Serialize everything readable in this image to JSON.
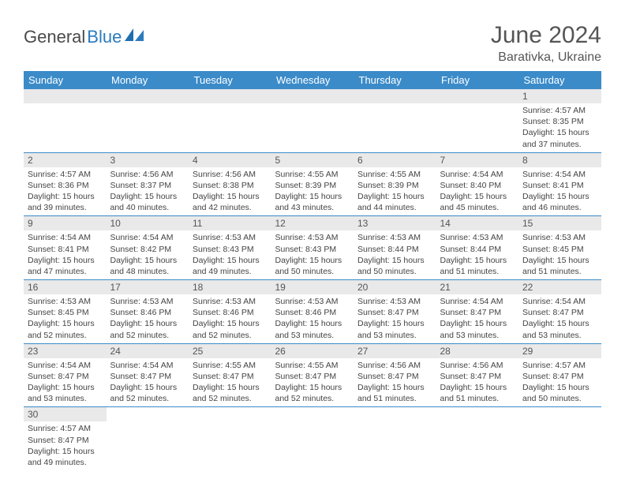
{
  "brand": {
    "part1": "General",
    "part2": "Blue"
  },
  "header": {
    "title": "June 2024",
    "location": "Barativka, Ukraine"
  },
  "colors": {
    "headerBar": "#3b8bc9",
    "dayStrip": "#e9e9e9",
    "text": "#555555",
    "brandBlue": "#2b7bbf"
  },
  "weekdays": [
    "Sunday",
    "Monday",
    "Tuesday",
    "Wednesday",
    "Thursday",
    "Friday",
    "Saturday"
  ],
  "days": {
    "1": {
      "sunrise": "Sunrise: 4:57 AM",
      "sunset": "Sunset: 8:35 PM",
      "day1": "Daylight: 15 hours",
      "day2": "and 37 minutes."
    },
    "2": {
      "sunrise": "Sunrise: 4:57 AM",
      "sunset": "Sunset: 8:36 PM",
      "day1": "Daylight: 15 hours",
      "day2": "and 39 minutes."
    },
    "3": {
      "sunrise": "Sunrise: 4:56 AM",
      "sunset": "Sunset: 8:37 PM",
      "day1": "Daylight: 15 hours",
      "day2": "and 40 minutes."
    },
    "4": {
      "sunrise": "Sunrise: 4:56 AM",
      "sunset": "Sunset: 8:38 PM",
      "day1": "Daylight: 15 hours",
      "day2": "and 42 minutes."
    },
    "5": {
      "sunrise": "Sunrise: 4:55 AM",
      "sunset": "Sunset: 8:39 PM",
      "day1": "Daylight: 15 hours",
      "day2": "and 43 minutes."
    },
    "6": {
      "sunrise": "Sunrise: 4:55 AM",
      "sunset": "Sunset: 8:39 PM",
      "day1": "Daylight: 15 hours",
      "day2": "and 44 minutes."
    },
    "7": {
      "sunrise": "Sunrise: 4:54 AM",
      "sunset": "Sunset: 8:40 PM",
      "day1": "Daylight: 15 hours",
      "day2": "and 45 minutes."
    },
    "8": {
      "sunrise": "Sunrise: 4:54 AM",
      "sunset": "Sunset: 8:41 PM",
      "day1": "Daylight: 15 hours",
      "day2": "and 46 minutes."
    },
    "9": {
      "sunrise": "Sunrise: 4:54 AM",
      "sunset": "Sunset: 8:41 PM",
      "day1": "Daylight: 15 hours",
      "day2": "and 47 minutes."
    },
    "10": {
      "sunrise": "Sunrise: 4:54 AM",
      "sunset": "Sunset: 8:42 PM",
      "day1": "Daylight: 15 hours",
      "day2": "and 48 minutes."
    },
    "11": {
      "sunrise": "Sunrise: 4:53 AM",
      "sunset": "Sunset: 8:43 PM",
      "day1": "Daylight: 15 hours",
      "day2": "and 49 minutes."
    },
    "12": {
      "sunrise": "Sunrise: 4:53 AM",
      "sunset": "Sunset: 8:43 PM",
      "day1": "Daylight: 15 hours",
      "day2": "and 50 minutes."
    },
    "13": {
      "sunrise": "Sunrise: 4:53 AM",
      "sunset": "Sunset: 8:44 PM",
      "day1": "Daylight: 15 hours",
      "day2": "and 50 minutes."
    },
    "14": {
      "sunrise": "Sunrise: 4:53 AM",
      "sunset": "Sunset: 8:44 PM",
      "day1": "Daylight: 15 hours",
      "day2": "and 51 minutes."
    },
    "15": {
      "sunrise": "Sunrise: 4:53 AM",
      "sunset": "Sunset: 8:45 PM",
      "day1": "Daylight: 15 hours",
      "day2": "and 51 minutes."
    },
    "16": {
      "sunrise": "Sunrise: 4:53 AM",
      "sunset": "Sunset: 8:45 PM",
      "day1": "Daylight: 15 hours",
      "day2": "and 52 minutes."
    },
    "17": {
      "sunrise": "Sunrise: 4:53 AM",
      "sunset": "Sunset: 8:46 PM",
      "day1": "Daylight: 15 hours",
      "day2": "and 52 minutes."
    },
    "18": {
      "sunrise": "Sunrise: 4:53 AM",
      "sunset": "Sunset: 8:46 PM",
      "day1": "Daylight: 15 hours",
      "day2": "and 52 minutes."
    },
    "19": {
      "sunrise": "Sunrise: 4:53 AM",
      "sunset": "Sunset: 8:46 PM",
      "day1": "Daylight: 15 hours",
      "day2": "and 53 minutes."
    },
    "20": {
      "sunrise": "Sunrise: 4:53 AM",
      "sunset": "Sunset: 8:47 PM",
      "day1": "Daylight: 15 hours",
      "day2": "and 53 minutes."
    },
    "21": {
      "sunrise": "Sunrise: 4:54 AM",
      "sunset": "Sunset: 8:47 PM",
      "day1": "Daylight: 15 hours",
      "day2": "and 53 minutes."
    },
    "22": {
      "sunrise": "Sunrise: 4:54 AM",
      "sunset": "Sunset: 8:47 PM",
      "day1": "Daylight: 15 hours",
      "day2": "and 53 minutes."
    },
    "23": {
      "sunrise": "Sunrise: 4:54 AM",
      "sunset": "Sunset: 8:47 PM",
      "day1": "Daylight: 15 hours",
      "day2": "and 53 minutes."
    },
    "24": {
      "sunrise": "Sunrise: 4:54 AM",
      "sunset": "Sunset: 8:47 PM",
      "day1": "Daylight: 15 hours",
      "day2": "and 52 minutes."
    },
    "25": {
      "sunrise": "Sunrise: 4:55 AM",
      "sunset": "Sunset: 8:47 PM",
      "day1": "Daylight: 15 hours",
      "day2": "and 52 minutes."
    },
    "26": {
      "sunrise": "Sunrise: 4:55 AM",
      "sunset": "Sunset: 8:47 PM",
      "day1": "Daylight: 15 hours",
      "day2": "and 52 minutes."
    },
    "27": {
      "sunrise": "Sunrise: 4:56 AM",
      "sunset": "Sunset: 8:47 PM",
      "day1": "Daylight: 15 hours",
      "day2": "and 51 minutes."
    },
    "28": {
      "sunrise": "Sunrise: 4:56 AM",
      "sunset": "Sunset: 8:47 PM",
      "day1": "Daylight: 15 hours",
      "day2": "and 51 minutes."
    },
    "29": {
      "sunrise": "Sunrise: 4:57 AM",
      "sunset": "Sunset: 8:47 PM",
      "day1": "Daylight: 15 hours",
      "day2": "and 50 minutes."
    },
    "30": {
      "sunrise": "Sunrise: 4:57 AM",
      "sunset": "Sunset: 8:47 PM",
      "day1": "Daylight: 15 hours",
      "day2": "and 49 minutes."
    }
  },
  "layout": [
    [
      null,
      null,
      null,
      null,
      null,
      null,
      "1"
    ],
    [
      "2",
      "3",
      "4",
      "5",
      "6",
      "7",
      "8"
    ],
    [
      "9",
      "10",
      "11",
      "12",
      "13",
      "14",
      "15"
    ],
    [
      "16",
      "17",
      "18",
      "19",
      "20",
      "21",
      "22"
    ],
    [
      "23",
      "24",
      "25",
      "26",
      "27",
      "28",
      "29"
    ],
    [
      "30",
      null,
      null,
      null,
      null,
      null,
      null
    ]
  ]
}
